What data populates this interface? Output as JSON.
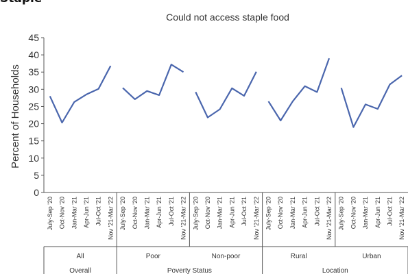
{
  "page_heading": "Staple food",
  "chart_data": {
    "type": "line",
    "title": "Could not access staple food",
    "ylabel": "Percent of Households",
    "ylim": [
      0,
      45
    ],
    "yticks": [
      0,
      5,
      10,
      15,
      20,
      25,
      30,
      35,
      40,
      45
    ],
    "grid": false,
    "line_color": "#4a66ad",
    "periods": [
      "July-Sep '20",
      "Oct-Nov '20",
      "Jan-Mar '21",
      "Apr-Jun '21",
      "Jul-Oct '21",
      "Nov '21-Mar '22"
    ],
    "groups": [
      {
        "name": "All",
        "category": "Overall",
        "values": [
          28,
          20.3,
          26.3,
          28.5,
          30.1,
          36.8
        ]
      },
      {
        "name": "Poor",
        "category": "Poverty Status",
        "values": [
          30.4,
          27.1,
          29.5,
          28.3,
          37.2,
          35
        ]
      },
      {
        "name": "Non-poor",
        "category": "Poverty Status",
        "values": [
          29.2,
          21.8,
          24.2,
          30.3,
          28.1,
          35.1
        ]
      },
      {
        "name": "Rural",
        "category": "Location",
        "values": [
          26.5,
          20.9,
          26.5,
          30.9,
          29.2,
          39
        ]
      },
      {
        "name": "Urban",
        "category": "Location",
        "values": [
          30.4,
          19,
          25.6,
          24.3,
          31.4,
          34
        ]
      }
    ],
    "categories": [
      {
        "name": "Overall",
        "span": 1
      },
      {
        "name": "Poverty Status",
        "span": 2
      },
      {
        "name": "Location",
        "span": 2
      }
    ]
  }
}
